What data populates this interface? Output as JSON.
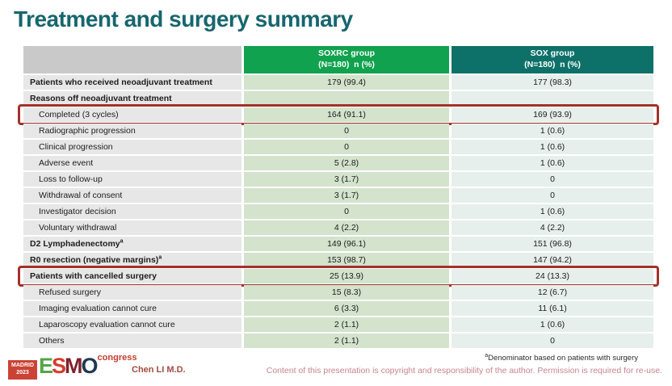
{
  "slide": {
    "title": "Treatment and surgery summary"
  },
  "colors": {
    "title": "#17666e",
    "soxrc_header": "#10a24e",
    "sox_header": "#0e7169",
    "highlight_border": "#a2322b",
    "soxrc_cell": "#d3e3cc",
    "sox_cell": "#e7efec",
    "label_cell": "#e7e7e7"
  },
  "table": {
    "header": {
      "soxrc_label": "SOXRC group",
      "soxrc_sub": "(N=180)  n (%)",
      "sox_label": "SOX group",
      "sox_sub": "(N=180)  n (%)"
    },
    "rows": [
      {
        "label": "Patients who received neoadjuvant treatment",
        "bold": true,
        "indent": false,
        "soxrc": "179 (99.4)",
        "sox": "177 (98.3)",
        "highlight": false
      },
      {
        "label": "Reasons off neoadjuvant treatment",
        "bold": true,
        "indent": false,
        "soxrc": "",
        "sox": "",
        "highlight": false
      },
      {
        "label": "Completed (3 cycles)",
        "bold": false,
        "indent": true,
        "soxrc": "164 (91.1)",
        "sox": "169 (93.9)",
        "highlight": true
      },
      {
        "label": "Radiographic progression",
        "bold": false,
        "indent": true,
        "soxrc": "0",
        "sox": "1 (0.6)",
        "highlight": false
      },
      {
        "label": "Clinical progression",
        "bold": false,
        "indent": true,
        "soxrc": "0",
        "sox": "1 (0.6)",
        "highlight": false
      },
      {
        "label": "Adverse event",
        "bold": false,
        "indent": true,
        "soxrc": "5 (2.8)",
        "sox": "1 (0.6)",
        "highlight": false
      },
      {
        "label": "Loss to follow-up",
        "bold": false,
        "indent": true,
        "soxrc": "3 (1.7)",
        "sox": "0",
        "highlight": false
      },
      {
        "label": "Withdrawal of consent",
        "bold": false,
        "indent": true,
        "soxrc": "3 (1.7)",
        "sox": "0",
        "highlight": false
      },
      {
        "label": "Investigator decision",
        "bold": false,
        "indent": true,
        "soxrc": "0",
        "sox": "1 (0.6)",
        "highlight": false
      },
      {
        "label": "Voluntary withdrawal",
        "bold": false,
        "indent": true,
        "soxrc": "4 (2.2)",
        "sox": "4 (2.2)",
        "highlight": false
      },
      {
        "label": "D2 Lymphadenectomy",
        "sup": "a",
        "bold": true,
        "indent": false,
        "soxrc": "149 (96.1)",
        "sox": "151 (96.8)",
        "highlight": false
      },
      {
        "label": "R0 resection (negative margins)",
        "sup": "a",
        "bold": true,
        "indent": false,
        "soxrc": "153 (98.7)",
        "sox": "147 (94.2)",
        "highlight": false
      },
      {
        "label": "Patients with cancelled surgery",
        "bold": true,
        "indent": false,
        "soxrc": "25 (13.9)",
        "sox": "24 (13.3)",
        "highlight": true
      },
      {
        "label": "Refused surgery",
        "bold": false,
        "indent": true,
        "soxrc": "15 (8.3)",
        "sox": "12 (6.7)",
        "highlight": false
      },
      {
        "label": "Imaging evaluation cannot cure",
        "bold": false,
        "indent": true,
        "soxrc": "6 (3.3)",
        "sox": "11 (6.1)",
        "highlight": false
      },
      {
        "label": "Laparoscopy evaluation cannot cure",
        "bold": false,
        "indent": true,
        "soxrc": "2 (1.1)",
        "sox": "1 (0.6)",
        "highlight": false
      },
      {
        "label": "Others",
        "bold": false,
        "indent": true,
        "soxrc": "2 (1.1)",
        "sox": "0",
        "highlight": false
      }
    ]
  },
  "footer": {
    "logo": {
      "badge": "MADRID\n2023",
      "letters": [
        "E",
        "S",
        "M",
        "O"
      ],
      "congress": "congress"
    },
    "author": "Chen LI M.D.",
    "footnote_sup": "a",
    "footnote": "Denominator based on patients with surgery",
    "copyright": "Content of this presentation is copyright and responsibility of the author. Permission is required for re-use."
  }
}
